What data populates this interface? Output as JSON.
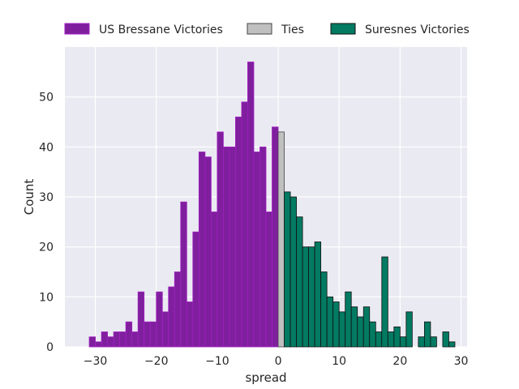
{
  "chart_data": {
    "type": "bar",
    "xlabel": "spread",
    "ylabel": "Count",
    "xlim": [
      -35,
      31
    ],
    "ylim": [
      0,
      60
    ],
    "xticks": [
      -30,
      -20,
      -10,
      0,
      10,
      20,
      30
    ],
    "xtick_labels": [
      "−30",
      "−20",
      "−10",
      "0",
      "10",
      "20",
      "30"
    ],
    "yticks": [
      0,
      10,
      20,
      30,
      40,
      50
    ],
    "ytick_labels": [
      "0",
      "10",
      "20",
      "30",
      "40",
      "50"
    ],
    "grid": true,
    "legend_position": "top",
    "bin_width": 1,
    "series": [
      {
        "name": "US Bressane Victories",
        "color": "#7f1f9e",
        "edge": "#a020c0",
        "bin_starts": [
          -31,
          -30,
          -29,
          -28,
          -27,
          -26,
          -25,
          -24,
          -23,
          -22,
          -21,
          -20,
          -19,
          -18,
          -17,
          -16,
          -15,
          -14,
          -13,
          -12,
          -11,
          -10,
          -9,
          -8,
          -7,
          -6,
          -5,
          -4,
          -3,
          -2,
          -1
        ],
        "values": [
          2,
          1,
          3,
          2,
          3,
          3,
          5,
          3,
          11,
          5,
          5,
          11,
          7,
          12,
          15,
          29,
          9,
          23,
          39,
          38,
          27,
          43,
          40,
          40,
          46,
          49,
          57,
          39,
          40,
          27,
          44
        ]
      },
      {
        "name": "Ties",
        "color": "#c0c0c0",
        "edge": "#444444",
        "bin_starts": [
          0
        ],
        "values": [
          43
        ]
      },
      {
        "name": "Suresnes Victories",
        "color": "#037a62",
        "edge": "#111111",
        "bin_starts": [
          1,
          2,
          3,
          4,
          5,
          6,
          7,
          8,
          9,
          10,
          11,
          12,
          13,
          14,
          15,
          16,
          17,
          18,
          19,
          20,
          21,
          22,
          23,
          24,
          25,
          26,
          27,
          28
        ],
        "values": [
          31,
          30,
          26,
          20,
          20,
          21,
          15,
          10,
          9,
          7,
          11,
          8,
          6,
          8,
          5,
          3,
          18,
          3,
          4,
          2,
          7,
          0,
          2,
          5,
          2,
          0,
          3,
          1
        ]
      }
    ]
  }
}
